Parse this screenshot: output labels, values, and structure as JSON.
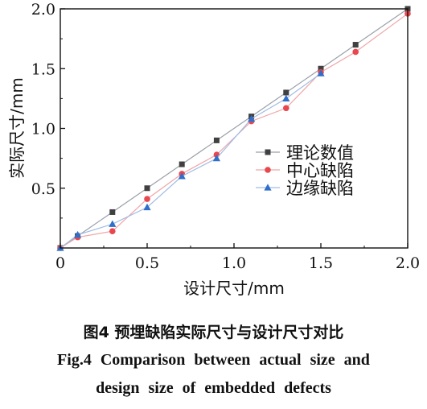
{
  "chart_data": {
    "type": "line",
    "xlabel": "设计尺寸/mm",
    "ylabel": "实际尺寸/mm",
    "xlim": [
      0,
      2.0
    ],
    "ylim": [
      0,
      2.0
    ],
    "xticks": [
      "0",
      "0.5",
      "1.0",
      "1.5",
      "2.0"
    ],
    "yticks": [
      "0.5",
      "1.0",
      "1.5",
      "2.0"
    ],
    "grid": false,
    "legend_position": "center-right",
    "series": [
      {
        "name": "理论数值",
        "marker": "square",
        "color": "#404040",
        "line_color": "#9aa0a8",
        "x": [
          0,
          0.1,
          0.3,
          0.5,
          0.7,
          0.9,
          1.1,
          1.3,
          1.5,
          1.7,
          2.0
        ],
        "y": [
          0,
          0.1,
          0.3,
          0.5,
          0.7,
          0.9,
          1.1,
          1.3,
          1.5,
          1.7,
          2.0
        ]
      },
      {
        "name": "中心缺陷",
        "marker": "circle",
        "color": "#e8474e",
        "line_color": "#f0a5a8",
        "x": [
          0,
          0.1,
          0.3,
          0.5,
          0.7,
          0.9,
          1.1,
          1.3,
          1.5,
          1.7,
          2.0
        ],
        "y": [
          0,
          0.09,
          0.14,
          0.41,
          0.62,
          0.78,
          1.06,
          1.17,
          1.47,
          1.64,
          1.96
        ]
      },
      {
        "name": "边缘缺陷",
        "marker": "triangle",
        "color": "#2f6fc9",
        "line_color": "#9fbde6",
        "x": [
          0,
          0.1,
          0.3,
          0.5,
          0.7,
          0.9,
          1.1,
          1.3,
          1.5
        ],
        "y": [
          0,
          0.11,
          0.2,
          0.34,
          0.6,
          0.75,
          1.08,
          1.25,
          1.46
        ]
      }
    ]
  },
  "caption": {
    "cn": "图4   预埋缺陷实际尺寸与设计尺寸对比",
    "en_line1": "Fig.4   Comparison between actual size and",
    "en_line2": "design size of embedded defects"
  }
}
